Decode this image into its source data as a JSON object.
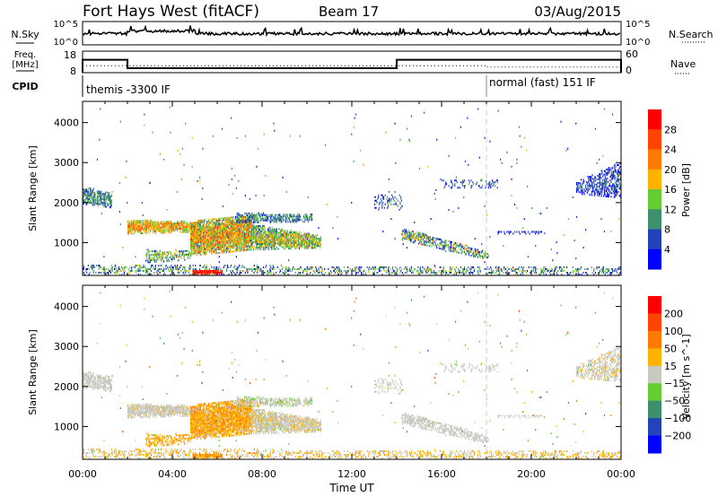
{
  "header": {
    "title": "Fort Hays West (fitACF)",
    "beam": "Beam 17",
    "date": "03/Aug/2015"
  },
  "summary_panels": {
    "nsky_label": "N.Sky",
    "nsearch_label": "N.Search",
    "noise_ticks": [
      "10^5",
      "10^0"
    ],
    "freq_label_1": "Freq.",
    "freq_label_2": "[MHz]",
    "freq_ticks": [
      "18",
      "8"
    ],
    "freq_range": [
      8,
      18
    ],
    "nave_label": "Nave",
    "nave_ticks": [
      "60",
      "0"
    ],
    "nave_range": [
      0,
      60
    ],
    "cpid_label": "CPID",
    "cpid_segments": [
      {
        "label": "themis -3300 IF",
        "start_hour": 0
      },
      {
        "label": "normal (fast) 151 IF",
        "start_hour": 18
      }
    ],
    "frequency_steps": [
      {
        "start_hour": 0,
        "end_hour": 2,
        "mhz": 15.2
      },
      {
        "start_hour": 2,
        "end_hour": 14,
        "mhz": 10.5
      },
      {
        "start_hour": 14,
        "end_hour": 24,
        "mhz": 15.2
      }
    ],
    "nave_values": [
      {
        "start_hour": 0,
        "end_hour": 18,
        "nave": 21
      },
      {
        "start_hour": 18,
        "end_hour": 24,
        "nave": 17
      }
    ]
  },
  "chart_data": [
    {
      "type": "heatmap",
      "name": "power",
      "xlabel": "",
      "ylabel": "Slant Range [km]",
      "xlim": [
        0,
        24
      ],
      "ylim": [
        180,
        4530
      ],
      "yticks": [
        "1000",
        "2000",
        "3000",
        "4000"
      ],
      "colorbar_label": "Power [dB]",
      "colorbar_ticks": [
        "28",
        "24",
        "20",
        "16",
        "12",
        "8",
        "4"
      ],
      "color_levels": [
        0,
        4,
        8,
        12,
        16,
        20,
        24,
        28
      ],
      "colors": [
        "#0000ff",
        "#2244b8",
        "#3f8f6e",
        "#66cc33",
        "#ffb300",
        "#ff7a00",
        "#ff4400",
        "#ff0000"
      ]
    },
    {
      "type": "heatmap",
      "name": "velocity",
      "xlabel": "Time UT",
      "ylabel": "Slant Range [km]",
      "xlim": [
        0,
        24
      ],
      "ylim": [
        180,
        4530
      ],
      "xticks": [
        "00:00",
        "04:00",
        "08:00",
        "12:00",
        "16:00",
        "20:00",
        "00:00"
      ],
      "yticks": [
        "1000",
        "2000",
        "3000",
        "4000"
      ],
      "colorbar_label": "Velocity [m s^-1]",
      "colorbar_ticks": [
        "200",
        "100",
        "50",
        "15",
        "−15",
        "−50",
        "−100",
        "−200"
      ],
      "color_levels": [
        200,
        100,
        50,
        15,
        -15,
        -50,
        -100,
        -200
      ],
      "colors": [
        "#0000ff",
        "#2244b8",
        "#3f8f6e",
        "#66cc33",
        "#c8c8c0",
        "#ffb300",
        "#ff7a00",
        "#ff4400",
        "#ff0000"
      ]
    }
  ],
  "echo_regions": [
    {
      "t0": 0.0,
      "t1": 1.3,
      "r0s": 1950,
      "r1s": 2400,
      "r0e": 1850,
      "r1e": 2200,
      "density": 0.7,
      "power": 9,
      "pspread": 5,
      "vel": 0,
      "vspread": 10
    },
    {
      "t0": 2.0,
      "t1": 5.2,
      "r0s": 1200,
      "r1s": 1550,
      "r0e": 1250,
      "r1e": 1500,
      "density": 0.85,
      "power": 18,
      "pspread": 6,
      "vel": -5,
      "vspread": 15
    },
    {
      "t0": 2.8,
      "t1": 4.8,
      "r0s": 480,
      "r1s": 800,
      "r0e": 550,
      "r1e": 800,
      "density": 0.5,
      "power": 12,
      "pspread": 6,
      "vel": -40,
      "vspread": 20
    },
    {
      "t0": 4.8,
      "t1": 7.5,
      "r0s": 650,
      "r1s": 1500,
      "r0e": 800,
      "r1e": 1700,
      "density": 0.9,
      "power": 17,
      "pspread": 8,
      "vel": -40,
      "vspread": 30
    },
    {
      "t0": 7.5,
      "t1": 10.6,
      "r0s": 800,
      "r1s": 1450,
      "r0e": 850,
      "r1e": 1150,
      "density": 0.85,
      "power": 14,
      "pspread": 7,
      "vel": -5,
      "vspread": 20
    },
    {
      "t0": 6.8,
      "t1": 10.2,
      "r0s": 1480,
      "r1s": 1720,
      "r0e": 1500,
      "r1e": 1700,
      "density": 0.6,
      "power": 9,
      "pspread": 6,
      "vel": 5,
      "vspread": 20
    },
    {
      "t0": 14.2,
      "t1": 18.1,
      "r0s": 1050,
      "r1s": 1350,
      "r0e": 550,
      "r1e": 750,
      "density": 0.6,
      "power": 11,
      "pspread": 9,
      "vel": 0,
      "vspread": 10
    },
    {
      "t0": 13.0,
      "t1": 14.2,
      "r0s": 1800,
      "r1s": 2200,
      "r0e": 1800,
      "r1e": 2200,
      "density": 0.25,
      "power": 6,
      "pspread": 4,
      "vel": 0,
      "vspread": 10
    },
    {
      "t0": 16.0,
      "t1": 18.5,
      "r0s": 2350,
      "r1s": 2550,
      "r0e": 2350,
      "r1e": 2550,
      "density": 0.25,
      "power": 6,
      "pspread": 4,
      "vel": 0,
      "vspread": 10
    },
    {
      "t0": 18.5,
      "t1": 20.5,
      "r0s": 1200,
      "r1s": 1260,
      "r0e": 1200,
      "r1e": 1260,
      "density": 0.4,
      "power": 4,
      "pspread": 3,
      "vel": 0,
      "vspread": 8
    },
    {
      "t0": 22.0,
      "t1": 24.0,
      "r0s": 2200,
      "r1s": 2500,
      "r0e": 2100,
      "r1e": 3000,
      "density": 0.5,
      "power": 5,
      "pspread": 4,
      "vel": -5,
      "vspread": 18
    },
    {
      "t0": 0.0,
      "t1": 24.0,
      "r0s": 180,
      "r1s": 420,
      "r0e": 180,
      "r1e": 380,
      "density": 0.3,
      "power": 9,
      "pspread": 8,
      "vel": -20,
      "vspread": 30
    },
    {
      "t0": 4.9,
      "t1": 6.2,
      "r0s": 180,
      "r1s": 300,
      "r0e": 180,
      "r1e": 300,
      "density": 0.9,
      "power": 28,
      "pspread": 4,
      "vel": -50,
      "vspread": 30
    },
    {
      "t0": 0.5,
      "t1": 24.0,
      "r0s": 400,
      "r1s": 4400,
      "r0e": 400,
      "r1e": 4400,
      "density": 0.004,
      "power": 8,
      "pspread": 8,
      "vel": 0,
      "vspread": 100
    }
  ]
}
